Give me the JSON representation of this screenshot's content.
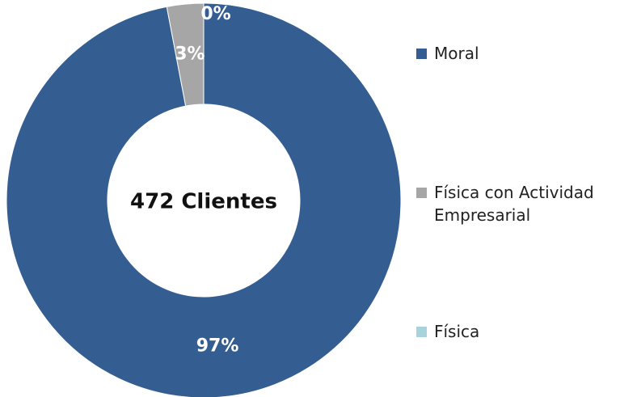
{
  "chart_data": {
    "type": "donut",
    "center_label": "472 Clientes",
    "categories": [
      "Moral",
      "Física con Actividad Empresarial",
      "Física"
    ],
    "values": [
      97,
      3,
      0
    ],
    "value_labels": [
      "97%",
      "3%",
      "0%"
    ],
    "colors": [
      "#345e91",
      "#a6a6a6",
      "#a9d3dc"
    ],
    "legend": "right"
  }
}
